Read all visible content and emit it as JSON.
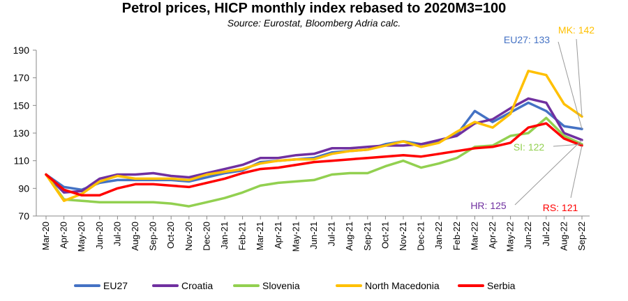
{
  "chart_data": {
    "type": "line",
    "title": "Petrol prices, HICP monthly index rebased to 2020M3=100",
    "subtitle": "Source: Eurostat, Bloomberg Adria calc.",
    "xlabel": "",
    "ylabel": "",
    "ylim": [
      70,
      190
    ],
    "yticks": [
      70,
      90,
      110,
      130,
      150,
      170,
      190
    ],
    "grid": false,
    "legend_position": "bottom",
    "categories": [
      "Mar-20",
      "Apr-20",
      "May-20",
      "Jun-20",
      "Jul-20",
      "Aug-20",
      "Sep-20",
      "Oct-20",
      "Nov-20",
      "Dec-20",
      "Jan-21",
      "Feb-21",
      "Mar-21",
      "Apr-21",
      "May-21",
      "Jun-21",
      "Jul-21",
      "Aug-21",
      "Sep-21",
      "Oct-21",
      "Nov-21",
      "Dec-21",
      "Jan-22",
      "Feb-22",
      "Mar-22",
      "Apr-22",
      "May-22",
      "Jun-22",
      "Jul-22",
      "Aug-22",
      "Sep-22"
    ],
    "series": [
      {
        "name": "EU27",
        "color": "#4472C4",
        "values": [
          100,
          91,
          89,
          94,
          96,
          96,
          96,
          96,
          95,
          98,
          101,
          103,
          109,
          110,
          111,
          112,
          116,
          117,
          118,
          122,
          124,
          122,
          124,
          129,
          146,
          138,
          145,
          152,
          146,
          135,
          133
        ]
      },
      {
        "name": "Croatia",
        "color": "#7030A0",
        "values": [
          100,
          87,
          88,
          97,
          100,
          100,
          101,
          99,
          98,
          101,
          104,
          107,
          112,
          112,
          114,
          115,
          119,
          119,
          120,
          121,
          121,
          122,
          125,
          128,
          137,
          140,
          148,
          155,
          152,
          130,
          125
        ]
      },
      {
        "name": "Slovenia",
        "color": "#92D050",
        "values": [
          100,
          82,
          81,
          80,
          80,
          80,
          80,
          79,
          77,
          80,
          83,
          87,
          92,
          94,
          95,
          96,
          100,
          101,
          101,
          106,
          110,
          105,
          108,
          112,
          120,
          121,
          128,
          130,
          141,
          128,
          122
        ]
      },
      {
        "name": "North Macedonia",
        "color": "#FFC000",
        "values": [
          100,
          81,
          86,
          95,
          99,
          97,
          97,
          97,
          96,
          100,
          102,
          104,
          108,
          110,
          111,
          111,
          115,
          117,
          118,
          121,
          124,
          120,
          123,
          131,
          138,
          134,
          144,
          175,
          172,
          151,
          142
        ]
      },
      {
        "name": "Serbia",
        "color": "#FF0000",
        "values": [
          100,
          89,
          85,
          85,
          90,
          93,
          93,
          92,
          91,
          94,
          97,
          101,
          104,
          105,
          107,
          109,
          110,
          111,
          112,
          113,
          114,
          113,
          115,
          117,
          119,
          120,
          123,
          134,
          137,
          126,
          121
        ]
      }
    ],
    "annotations": [
      {
        "text": "EU27: 133",
        "color": "#4472C4"
      },
      {
        "text": "MK: 142",
        "color": "#FFC000"
      },
      {
        "text": "SI: 122",
        "color": "#92D050"
      },
      {
        "text": "HR: 125",
        "color": "#7030A0"
      },
      {
        "text": "RS: 121",
        "color": "#FF0000"
      }
    ]
  }
}
